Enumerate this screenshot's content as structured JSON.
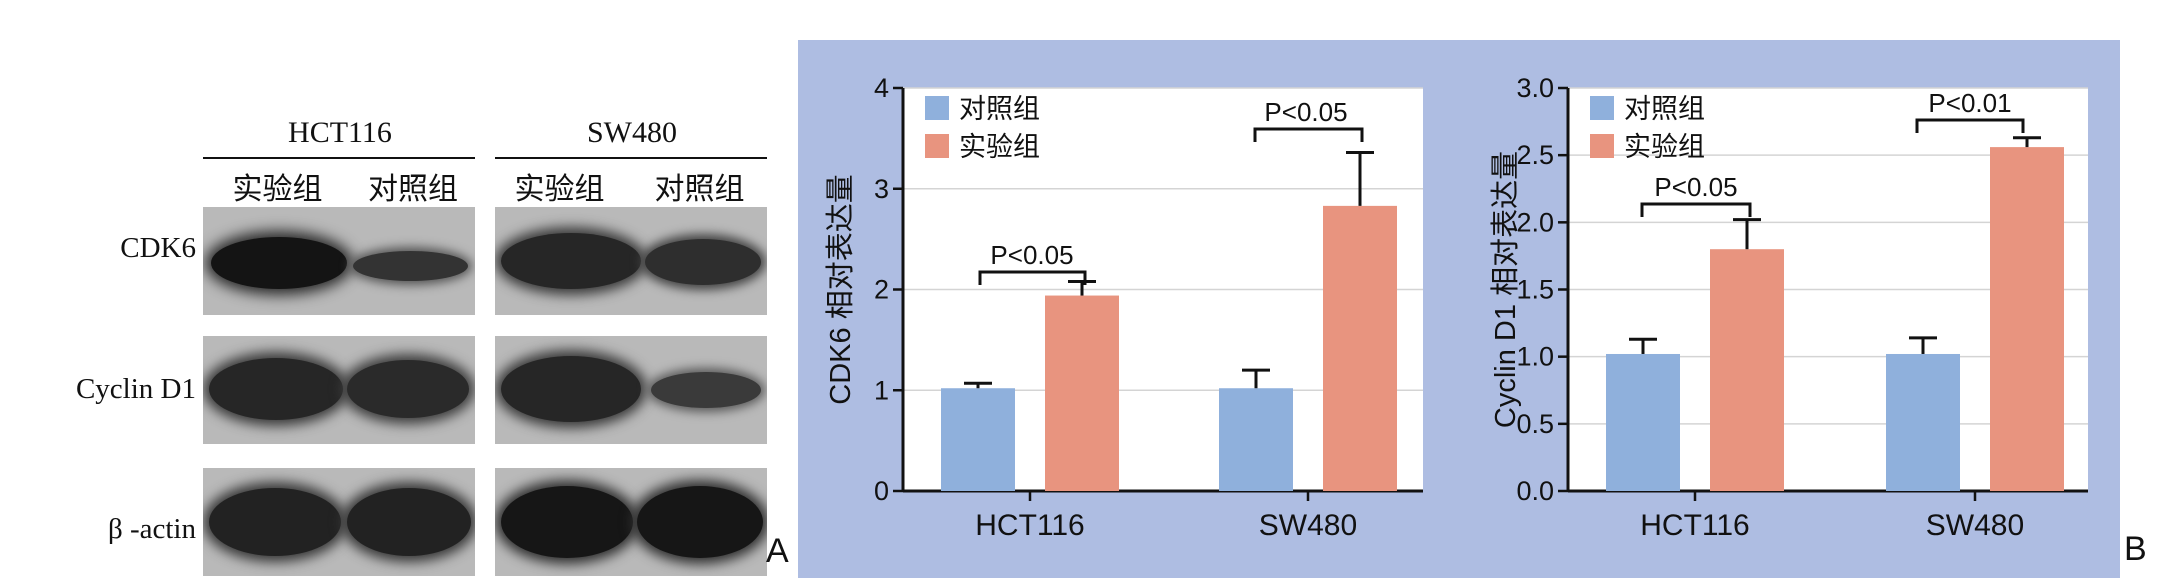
{
  "western_blot": {
    "groups": [
      {
        "name": "HCT116",
        "lanes": [
          "实验组",
          "对照组"
        ]
      },
      {
        "name": "SW480",
        "lanes": [
          "实验组",
          "对照组"
        ]
      }
    ],
    "rows": [
      "CDK6",
      "Cyclin D1",
      "β -actin"
    ],
    "panel_label": "A"
  },
  "panel_b_label": "B",
  "colors": {
    "control": "#8fb0dc",
    "experimental": "#e8947f",
    "chart_background": "#aebde2"
  },
  "chart_data": [
    {
      "type": "bar",
      "categories": [
        "HCT116",
        "SW480"
      ],
      "series": [
        {
          "name": "对照组",
          "values": [
            1.02,
            1.02
          ],
          "errors": [
            0.05,
            0.18
          ],
          "color": "#8fb0dc"
        },
        {
          "name": "实验组",
          "values": [
            1.94,
            2.83
          ],
          "errors": [
            0.14,
            0.53
          ],
          "color": "#e8947f"
        }
      ],
      "ylabel": "CDK6 相对表达量",
      "ylim": [
        0,
        4
      ],
      "yticks": [
        "0",
        "1",
        "2",
        "3",
        "4"
      ],
      "grid": true,
      "legend": "top-left",
      "annotations": [
        "P<0.05",
        "P<0.05"
      ]
    },
    {
      "type": "bar",
      "categories": [
        "HCT116",
        "SW480"
      ],
      "series": [
        {
          "name": "对照组",
          "values": [
            1.02,
            1.02
          ],
          "errors": [
            0.11,
            0.12
          ],
          "color": "#8fb0dc"
        },
        {
          "name": "实验组",
          "values": [
            1.8,
            2.56
          ],
          "errors": [
            0.22,
            0.07
          ],
          "color": "#e8947f"
        }
      ],
      "ylabel": "Cyclin D1 相对表达量",
      "ylim": [
        0,
        3.0
      ],
      "yticks": [
        "0.0",
        "0.5",
        "1.0",
        "1.5",
        "2.0",
        "2.5",
        "3.0"
      ],
      "grid": true,
      "legend": "top-left",
      "annotations": [
        "P<0.05",
        "P<0.01"
      ]
    }
  ]
}
